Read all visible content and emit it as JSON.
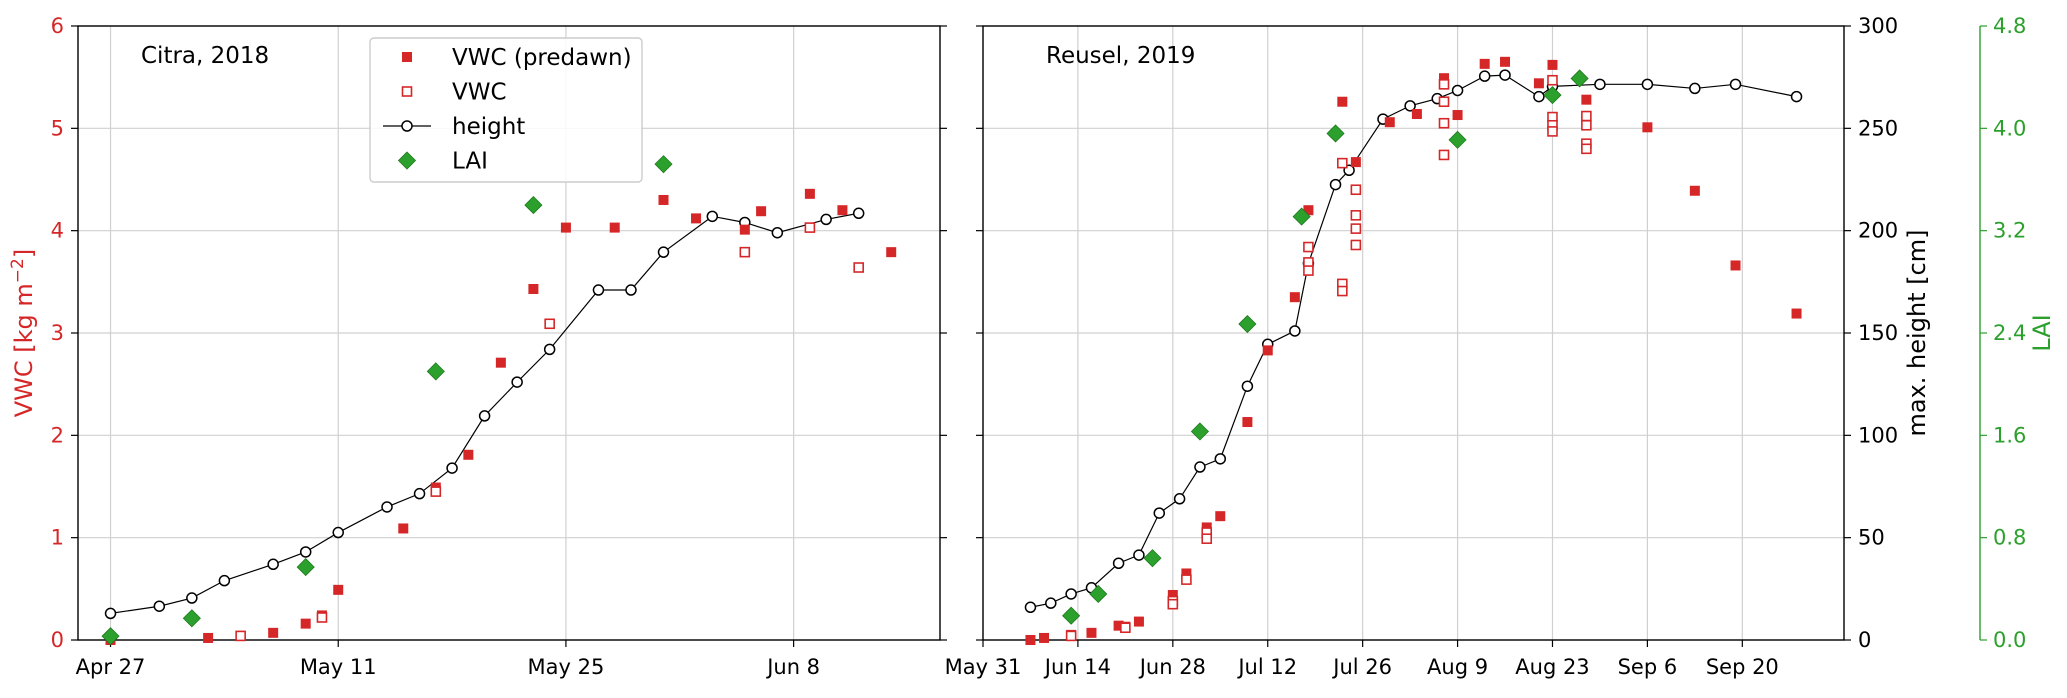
{
  "colors": {
    "vwc": "#d62728",
    "lai": "#2ca02c",
    "height": "#000000",
    "grid": "#d0d0d0"
  },
  "legend": {
    "placement": "top-center of left panel",
    "entries": [
      {
        "label": "VWC (predawn)",
        "marker": "filled-square",
        "color": "#d62728"
      },
      {
        "label": "VWC",
        "marker": "open-square",
        "color": "#d62728"
      },
      {
        "label": "height",
        "marker": "open-circle-line",
        "color": "#000000"
      },
      {
        "label": "LAI",
        "marker": "diamond",
        "color": "#2ca02c"
      }
    ]
  },
  "chart_data": [
    {
      "type": "scatter",
      "annotation": "Citra, 2018",
      "ylabel": "VWC [kg m−2]",
      "ylim": [
        0,
        6
      ],
      "yticks": [
        "0",
        "1",
        "2",
        "3",
        "4",
        "5",
        "6"
      ],
      "xlim": [
        "Apr 25",
        "Jun 17"
      ],
      "xtick_dates": [
        "Apr 27",
        "May 11",
        "May 25",
        "Jun 8"
      ],
      "xticks": [
        "Apr 27",
        "May 11",
        "May 25",
        "Jun  8"
      ],
      "grid": true,
      "vwc_predawn": [
        {
          "x": "Apr 27",
          "y": 0.0
        },
        {
          "x": "May 3",
          "y": 0.02
        },
        {
          "x": "May 5",
          "y": 0.04
        },
        {
          "x": "May 7",
          "y": 0.07
        },
        {
          "x": "May 9",
          "y": 0.16
        },
        {
          "x": "May 10",
          "y": 0.24
        },
        {
          "x": "May 11",
          "y": 0.49
        },
        {
          "x": "May 15",
          "y": 1.09
        },
        {
          "x": "May 17",
          "y": 1.49
        },
        {
          "x": "May 19",
          "y": 1.81
        },
        {
          "x": "May 21",
          "y": 2.71
        },
        {
          "x": "May 23",
          "y": 3.43
        },
        {
          "x": "May 25",
          "y": 4.03
        },
        {
          "x": "May 28",
          "y": 4.03
        },
        {
          "x": "May 31",
          "y": 4.3
        },
        {
          "x": "Jun 2",
          "y": 4.12
        },
        {
          "x": "Jun 5",
          "y": 4.01
        },
        {
          "x": "Jun 6",
          "y": 4.19
        },
        {
          "x": "Jun 9",
          "y": 4.36
        },
        {
          "x": "Jun 11",
          "y": 4.2
        },
        {
          "x": "Jun 14",
          "y": 3.79
        }
      ],
      "vwc": [
        {
          "x": "May 5",
          "y": 0.04
        },
        {
          "x": "May 10",
          "y": 0.22
        },
        {
          "x": "May 17",
          "y": 1.45
        },
        {
          "x": "May 24",
          "y": 3.09
        },
        {
          "x": "Jun 5",
          "y": 3.79
        },
        {
          "x": "Jun 9",
          "y": 4.03
        },
        {
          "x": "Jun 12",
          "y": 3.64
        }
      ],
      "height_cm": [
        {
          "x": "Apr 27",
          "y": 13
        },
        {
          "x": "Apr 30",
          "y": 16.5
        },
        {
          "x": "May 2",
          "y": 20.5
        },
        {
          "x": "May 4",
          "y": 29
        },
        {
          "x": "May 7",
          "y": 37
        },
        {
          "x": "May 9",
          "y": 43
        },
        {
          "x": "May 11",
          "y": 52.5
        },
        {
          "x": "May 14",
          "y": 65
        },
        {
          "x": "May 16",
          "y": 71.5
        },
        {
          "x": "May 18",
          "y": 84
        },
        {
          "x": "May 20",
          "y": 109.5
        },
        {
          "x": "May 22",
          "y": 126
        },
        {
          "x": "May 24",
          "y": 142
        },
        {
          "x": "May 27",
          "y": 171
        },
        {
          "x": "May 29",
          "y": 171
        },
        {
          "x": "May 31",
          "y": 189.5
        },
        {
          "x": "Jun 3",
          "y": 207
        },
        {
          "x": "Jun 5",
          "y": 204
        },
        {
          "x": "Jun 7",
          "y": 199
        },
        {
          "x": "Jun 10",
          "y": 205.5
        },
        {
          "x": "Jun 12",
          "y": 208.5
        }
      ],
      "lai": [
        {
          "x": "Apr 27",
          "y": 0.03
        },
        {
          "x": "May 2",
          "y": 0.17
        },
        {
          "x": "May 9",
          "y": 0.57
        },
        {
          "x": "May 17",
          "y": 2.1
        },
        {
          "x": "May 23",
          "y": 3.4
        },
        {
          "x": "May 31",
          "y": 3.72
        }
      ]
    },
    {
      "type": "scatter",
      "annotation": "Reusel, 2019",
      "ylabel": "max. height [cm]",
      "ylim": [
        0,
        300
      ],
      "yticks": [
        "0",
        "50",
        "100",
        "150",
        "200",
        "250",
        "300"
      ],
      "y2label": "LAI",
      "y2lim": [
        0,
        4.8
      ],
      "y2ticks": [
        "0.0",
        "0.8",
        "1.6",
        "2.4",
        "3.2",
        "4.0",
        "4.8"
      ],
      "xlim": [
        "May 31",
        "Oct 5"
      ],
      "xtick_dates": [
        "May 31",
        "Jun 14",
        "Jun 28",
        "Jul 12",
        "Jul 26",
        "Aug 9",
        "Aug 23",
        "Sep 6",
        "Sep 20"
      ],
      "xticks": [
        "May 31",
        "Jun 14",
        "Jun 28",
        "Jul 12",
        "Jul 26",
        "Aug 9",
        "Aug 23",
        "Sep  6",
        "Sep 20"
      ],
      "grid": true,
      "vwc_predawn": [
        {
          "x": "Jun 7",
          "y": 0.0
        },
        {
          "x": "Jun 9",
          "y": 0.02
        },
        {
          "x": "Jun 13",
          "y": 0.05
        },
        {
          "x": "Jun 16",
          "y": 0.07
        },
        {
          "x": "Jun 20",
          "y": 0.14
        },
        {
          "x": "Jun 21",
          "y": 0.13
        },
        {
          "x": "Jun 23",
          "y": 0.18
        },
        {
          "x": "Jun 28",
          "y": 0.44
        },
        {
          "x": "Jun 30",
          "y": 0.65
        },
        {
          "x": "Jul 3",
          "y": 1.1
        },
        {
          "x": "Jul 5",
          "y": 1.21
        },
        {
          "x": "Jul 9",
          "y": 2.13
        },
        {
          "x": "Jul 12",
          "y": 2.83
        },
        {
          "x": "Jul 16",
          "y": 3.35
        },
        {
          "x": "Jul 18",
          "y": 4.2
        },
        {
          "x": "Jul 23",
          "y": 5.26
        },
        {
          "x": "Jul 25",
          "y": 4.67
        },
        {
          "x": "Jul 30",
          "y": 5.06
        },
        {
          "x": "Aug 3",
          "y": 5.14
        },
        {
          "x": "Aug 7",
          "y": 5.49
        },
        {
          "x": "Aug 9",
          "y": 5.13
        },
        {
          "x": "Aug 13",
          "y": 5.63
        },
        {
          "x": "Aug 16",
          "y": 5.65
        },
        {
          "x": "Aug 21",
          "y": 5.44
        },
        {
          "x": "Aug 23",
          "y": 5.62
        },
        {
          "x": "Aug 28",
          "y": 5.28
        },
        {
          "x": "Sep 6",
          "y": 5.01
        },
        {
          "x": "Sep 13",
          "y": 4.39
        },
        {
          "x": "Sep 19",
          "y": 3.66
        },
        {
          "x": "Sep 28",
          "y": 3.19
        }
      ],
      "vwc": [
        {
          "x": "Jun 13",
          "y": 0.04
        },
        {
          "x": "Jun 21",
          "y": 0.12
        },
        {
          "x": "Jun 28",
          "y": 0.38
        },
        {
          "x": "Jun 28",
          "y": 0.35
        },
        {
          "x": "Jun 30",
          "y": 0.59
        },
        {
          "x": "Jul 3",
          "y": 1.05
        },
        {
          "x": "Jul 3",
          "y": 0.99
        },
        {
          "x": "Jul 18",
          "y": 3.84
        },
        {
          "x": "Jul 18",
          "y": 3.69
        },
        {
          "x": "Jul 18",
          "y": 3.61
        },
        {
          "x": "Jul 23",
          "y": 4.66
        },
        {
          "x": "Jul 23",
          "y": 3.48
        },
        {
          "x": "Jul 23",
          "y": 3.41
        },
        {
          "x": "Jul 25",
          "y": 4.4
        },
        {
          "x": "Jul 25",
          "y": 4.15
        },
        {
          "x": "Jul 25",
          "y": 4.02
        },
        {
          "x": "Jul 25",
          "y": 3.86
        },
        {
          "x": "Aug 7",
          "y": 5.43
        },
        {
          "x": "Aug 7",
          "y": 5.26
        },
        {
          "x": "Aug 7",
          "y": 5.05
        },
        {
          "x": "Aug 7",
          "y": 4.74
        },
        {
          "x": "Aug 23",
          "y": 5.47
        },
        {
          "x": "Aug 23",
          "y": 5.11
        },
        {
          "x": "Aug 23",
          "y": 5.03
        },
        {
          "x": "Aug 23",
          "y": 4.97
        },
        {
          "x": "Aug 28",
          "y": 5.12
        },
        {
          "x": "Aug 28",
          "y": 5.03
        },
        {
          "x": "Aug 28",
          "y": 4.85
        },
        {
          "x": "Aug 28",
          "y": 4.8
        }
      ],
      "height_cm": [
        {
          "x": "Jun 7",
          "y": 16
        },
        {
          "x": "Jun 10",
          "y": 18
        },
        {
          "x": "Jun 13",
          "y": 22.5
        },
        {
          "x": "Jun 16",
          "y": 25.5
        },
        {
          "x": "Jun 20",
          "y": 37.5
        },
        {
          "x": "Jun 23",
          "y": 41.5
        },
        {
          "x": "Jun 26",
          "y": 62
        },
        {
          "x": "Jun 29",
          "y": 69
        },
        {
          "x": "Jul 2",
          "y": 84.5
        },
        {
          "x": "Jul 5",
          "y": 88.5
        },
        {
          "x": "Jul 9",
          "y": 124
        },
        {
          "x": "Jul 12",
          "y": 144.5
        },
        {
          "x": "Jul 16",
          "y": 151
        },
        {
          "x": "Jul 18",
          "y": 184
        },
        {
          "x": "Jul 22",
          "y": 222.5
        },
        {
          "x": "Jul 24",
          "y": 229.5
        },
        {
          "x": "Jul 29",
          "y": 254.5
        },
        {
          "x": "Aug 2",
          "y": 261
        },
        {
          "x": "Aug 6",
          "y": 264.5
        },
        {
          "x": "Aug 9",
          "y": 268.5
        },
        {
          "x": "Aug 13",
          "y": 275.5
        },
        {
          "x": "Aug 16",
          "y": 276
        },
        {
          "x": "Aug 21",
          "y": 265.5
        },
        {
          "x": "Aug 23",
          "y": 270.5
        },
        {
          "x": "Aug 30",
          "y": 271.5
        },
        {
          "x": "Sep 6",
          "y": 271.5
        },
        {
          "x": "Sep 13",
          "y": 269.5
        },
        {
          "x": "Sep 19",
          "y": 271.5
        },
        {
          "x": "Sep 28",
          "y": 265.5
        }
      ],
      "lai": [
        {
          "x": "Jun 13",
          "y": 0.19
        },
        {
          "x": "Jun 17",
          "y": 0.36
        },
        {
          "x": "Jun 25",
          "y": 0.64
        },
        {
          "x": "Jul 2",
          "y": 1.63
        },
        {
          "x": "Jul 9",
          "y": 2.47
        },
        {
          "x": "Jul 17",
          "y": 3.31
        },
        {
          "x": "Jul 22",
          "y": 3.96
        },
        {
          "x": "Aug 9",
          "y": 3.91
        },
        {
          "x": "Aug 23",
          "y": 4.26
        },
        {
          "x": "Aug 27",
          "y": 4.39
        }
      ]
    }
  ]
}
